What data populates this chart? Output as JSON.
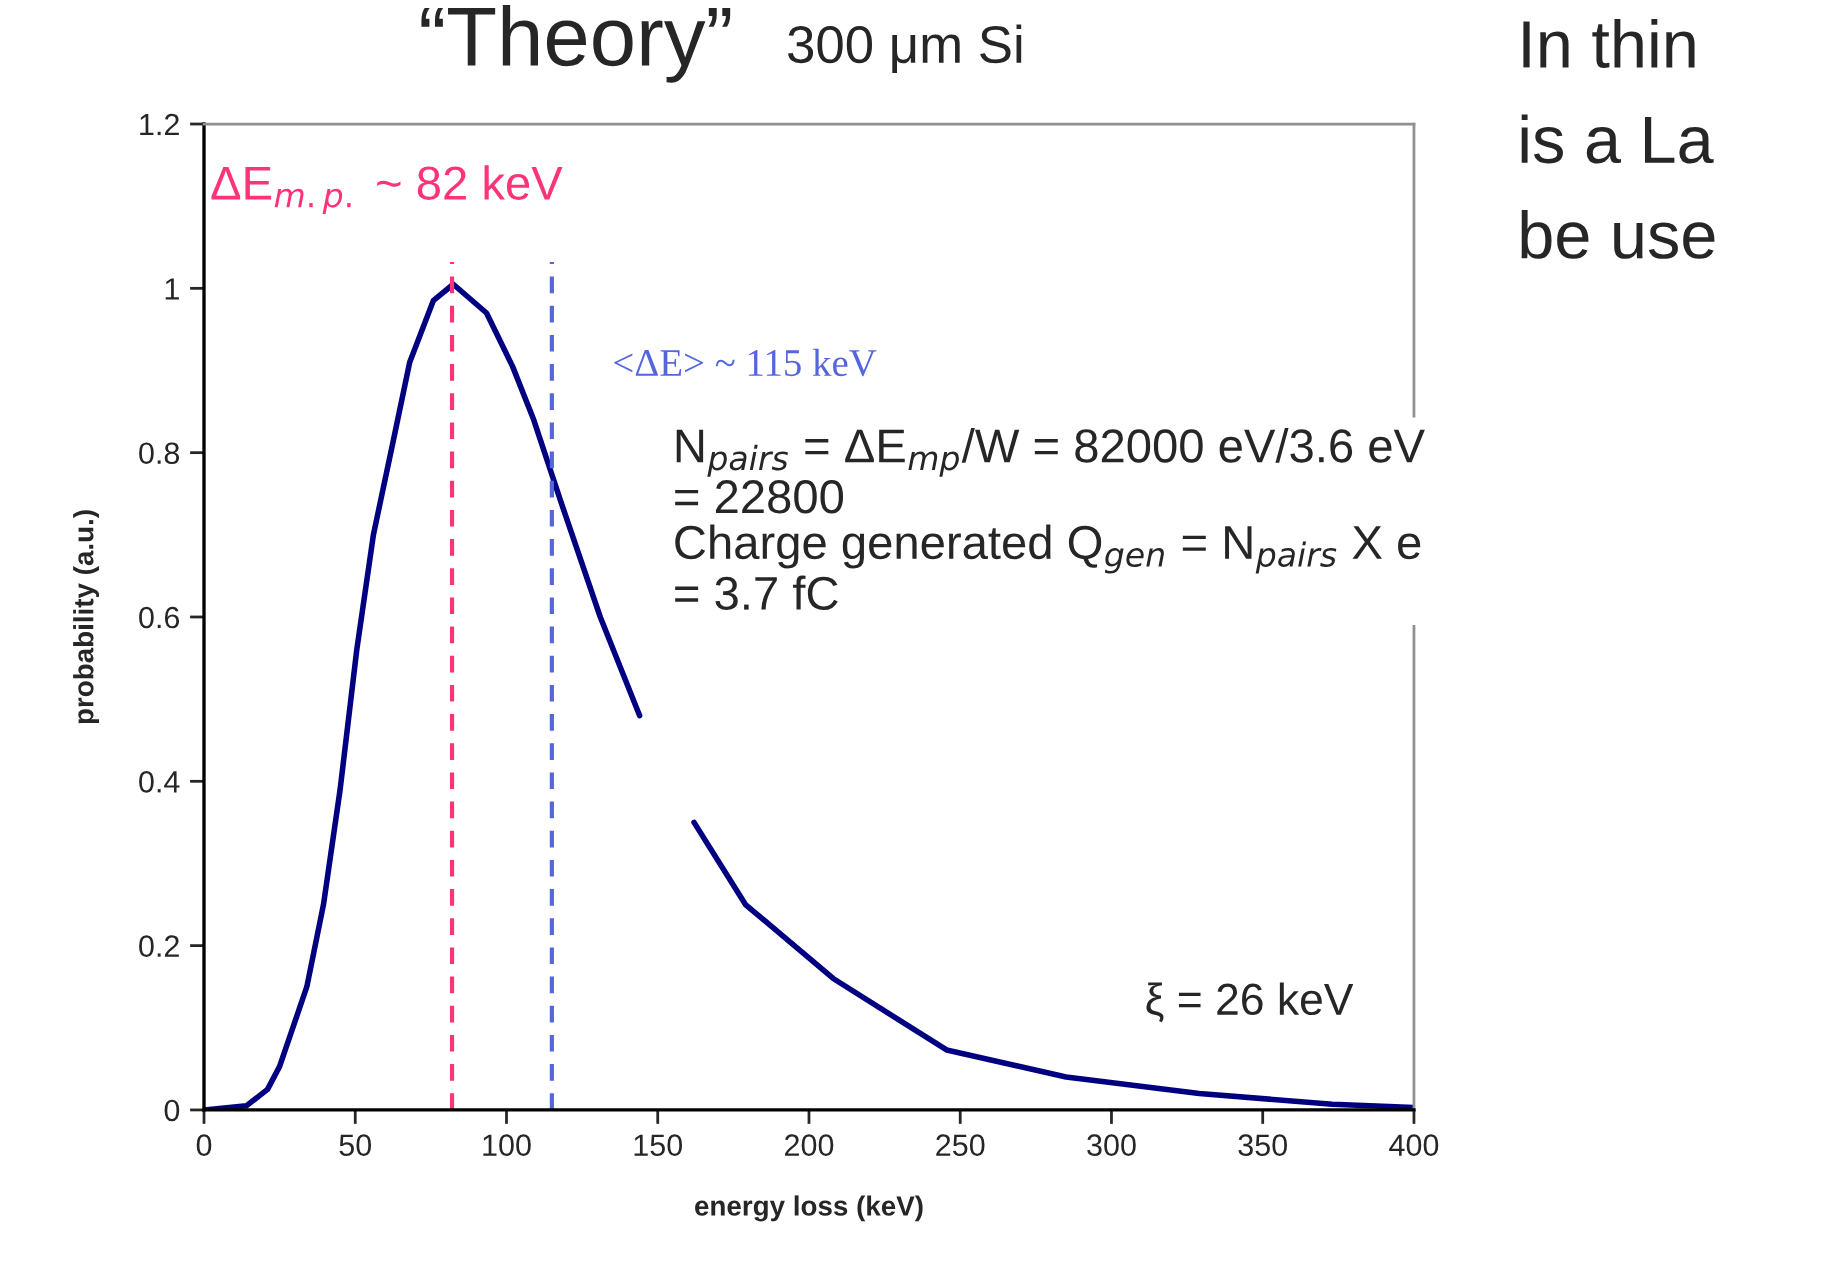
{
  "chart_data": {
    "type": "line",
    "title": "“Theory”",
    "subtitle": "300 μm Si",
    "xlabel": "energy loss (keV)",
    "ylabel": "probability (a.u.)",
    "x": [
      0,
      14,
      21,
      25,
      34,
      39.5,
      45,
      50.5,
      56,
      62.6,
      68,
      75.8,
      82.4,
      93.4,
      102,
      109,
      118,
      131,
      144,
      153,
      162,
      179,
      208,
      245.5,
      285,
      329,
      373,
      400
    ],
    "series": [
      {
        "color": "#000080",
        "values": [
          0,
          0.005,
          0.025,
          0.053,
          0.15,
          0.25,
          0.39,
          0.56,
          0.7,
          0.815,
          0.91,
          0.985,
          1.005,
          0.97,
          0.905,
          0.84,
          0.74,
          0.6,
          0.48,
          null,
          0.35,
          0.25,
          0.16,
          0.073,
          0.04,
          0.02,
          0.007,
          0.003
        ]
      }
    ],
    "xlim": [
      0,
      400
    ],
    "xticks": [
      0,
      50,
      100,
      150,
      200,
      250,
      300,
      350,
      400
    ],
    "ylim": [
      0,
      1.2
    ],
    "yticks": [
      0,
      0.2,
      0.4,
      0.6,
      0.8,
      1,
      1.2
    ],
    "ref_lines": [
      {
        "axis": "x",
        "value": 82,
        "label": "ΔE$_{m.p.}$ ~ 82 keV",
        "color": "#ff3377",
        "line_style": "dashed"
      },
      {
        "axis": "x",
        "value": 115,
        "label": "<ΔE> ~ 115 keV",
        "color": "#5566dd",
        "line_style": "dashed"
      }
    ],
    "annotations": [
      "N$_{pairs}$ = ΔE$_{mp}$/W = 82000 eV/3.6 eV\n= 22800\nCharge generated Q$_{gen}$ = N$_{pairs}$ X e\n= 3.7 fC",
      "ξ = 26 keV",
      "In thin",
      "is a La",
      "be use"
    ],
    "grid": false,
    "marker": "none",
    "line_style": "solid",
    "legend": false
  }
}
